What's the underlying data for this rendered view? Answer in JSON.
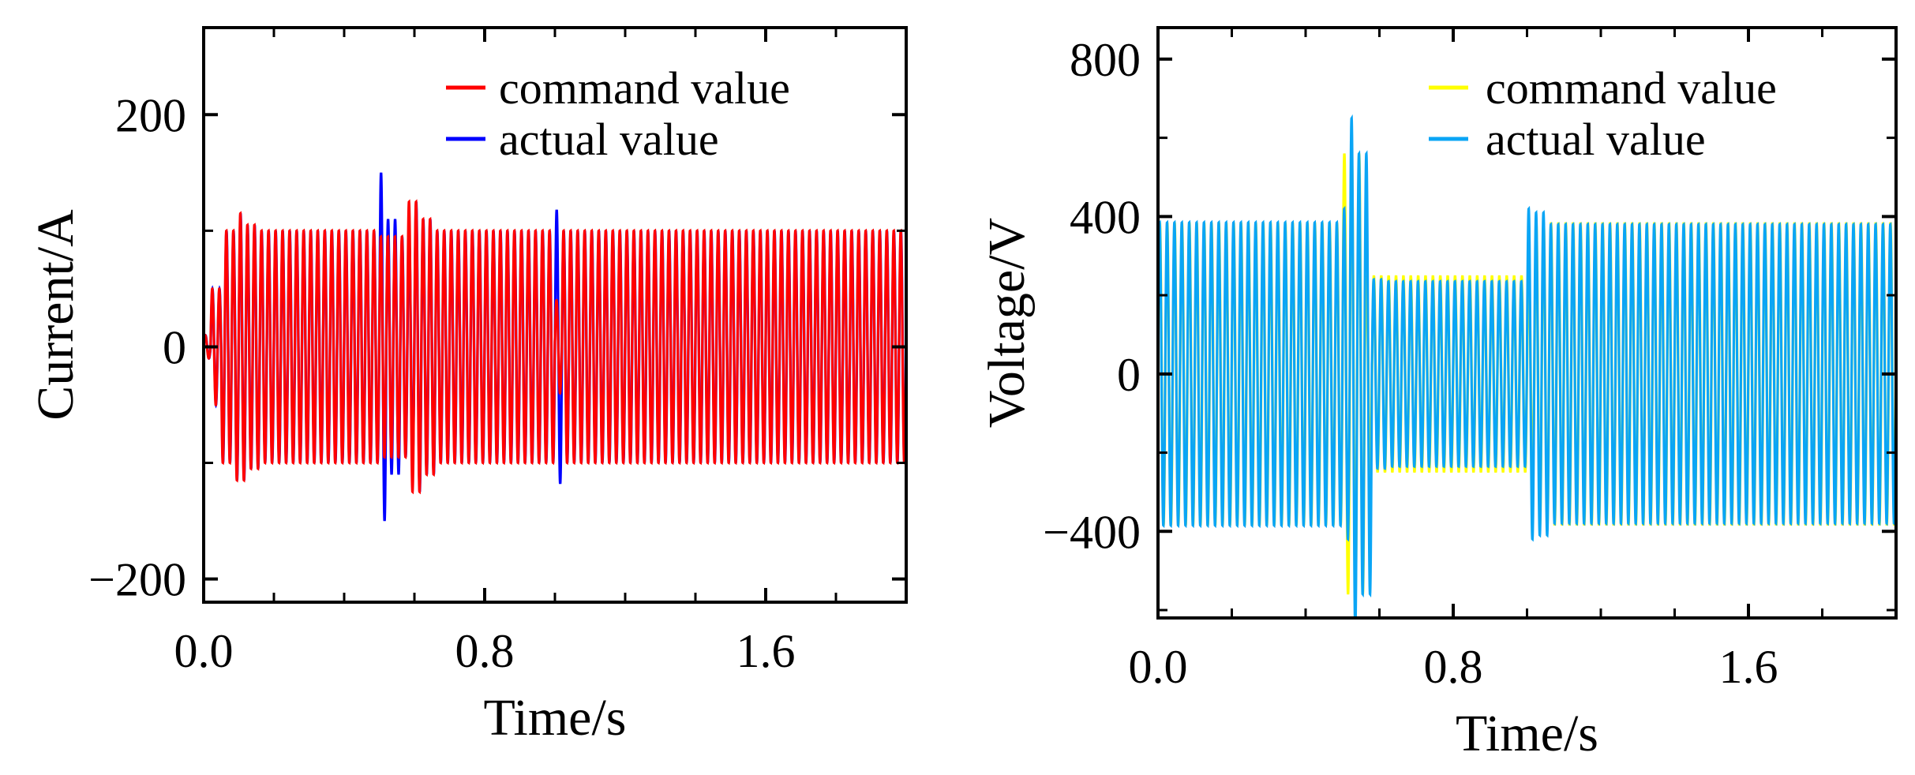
{
  "chart_data": [
    {
      "type": "line",
      "xlabel": "Time/s",
      "ylabel": "Current/A",
      "xlim": [
        0,
        2.0
      ],
      "ylim": [
        -220,
        275
      ],
      "xticks_major": [
        0.0,
        0.8,
        1.6
      ],
      "xtick_labels": [
        "0.0",
        "0.8",
        "1.6"
      ],
      "xticks_minor_step": 0.2,
      "yticks_major": [
        -200,
        0,
        200
      ],
      "ytick_labels": [
        "−200",
        "0",
        "200"
      ],
      "yticks_minor_step": 100,
      "legend_position": "top-right",
      "series": [
        {
          "name": "actual value",
          "color": "#0000ff",
          "waveform": {
            "freq_hz": 50,
            "segments": [
              {
                "t0": 0.0,
                "t1": 0.02,
                "amp": 10
              },
              {
                "t0": 0.02,
                "t1": 0.05,
                "amp": 50
              },
              {
                "t0": 0.05,
                "t1": 0.09,
                "amp": 100
              },
              {
                "t0": 0.09,
                "t1": 0.12,
                "amp": 115
              },
              {
                "t0": 0.12,
                "t1": 0.16,
                "amp": 105
              },
              {
                "t0": 0.16,
                "t1": 0.5,
                "amp": 100
              },
              {
                "t0": 0.5,
                "t1": 0.52,
                "amp": 150
              },
              {
                "t0": 0.52,
                "t1": 0.56,
                "amp": 110
              },
              {
                "t0": 0.56,
                "t1": 0.6,
                "amp": 95
              },
              {
                "t0": 0.6,
                "t1": 0.62,
                "amp": 125
              },
              {
                "t0": 0.62,
                "t1": 0.66,
                "amp": 110
              },
              {
                "t0": 0.66,
                "t1": 1.0,
                "amp": 100
              },
              {
                "t0": 1.0,
                "t1": 1.02,
                "amp": 118
              },
              {
                "t0": 1.02,
                "t1": 2.0,
                "amp": 100
              }
            ]
          }
        },
        {
          "name": "command value",
          "color": "#ff0000",
          "waveform": {
            "freq_hz": 50,
            "segments": [
              {
                "t0": 0.0,
                "t1": 0.02,
                "amp": 10
              },
              {
                "t0": 0.02,
                "t1": 0.05,
                "amp": 50
              },
              {
                "t0": 0.05,
                "t1": 0.09,
                "amp": 100
              },
              {
                "t0": 0.09,
                "t1": 0.12,
                "amp": 115
              },
              {
                "t0": 0.12,
                "t1": 0.16,
                "amp": 105
              },
              {
                "t0": 0.16,
                "t1": 0.5,
                "amp": 100
              },
              {
                "t0": 0.5,
                "t1": 0.58,
                "amp": 95
              },
              {
                "t0": 0.58,
                "t1": 0.62,
                "amp": 125
              },
              {
                "t0": 0.62,
                "t1": 0.66,
                "amp": 110
              },
              {
                "t0": 0.66,
                "t1": 1.0,
                "amp": 100
              },
              {
                "t0": 1.0,
                "t1": 1.02,
                "amp": 40
              },
              {
                "t0": 1.02,
                "t1": 2.0,
                "amp": 100
              }
            ]
          }
        }
      ],
      "legend_order": [
        "command value",
        "actual value"
      ]
    },
    {
      "type": "line",
      "xlabel": "Time/s",
      "ylabel": "Voltage/V",
      "xlim": [
        0,
        2.0
      ],
      "ylim": [
        -620,
        880
      ],
      "xticks_major": [
        0.0,
        0.8,
        1.6
      ],
      "xtick_labels": [
        "0.0",
        "0.8",
        "1.6"
      ],
      "xticks_minor_step": 0.2,
      "yticks_major": [
        -400,
        0,
        400,
        800
      ],
      "ytick_labels": [
        "−400",
        "0",
        "400",
        "800"
      ],
      "yticks_minor_step": 200,
      "legend_position": "top-right",
      "series": [
        {
          "name": "command value",
          "color": "#ffff00",
          "waveform": {
            "freq_hz": 50,
            "segments": [
              {
                "t0": 0.0,
                "t1": 0.5,
                "amp": 385
              },
              {
                "t0": 0.5,
                "t1": 0.56,
                "amp": 560
              },
              {
                "t0": 0.56,
                "t1": 0.62,
                "amp": 250
              },
              {
                "t0": 0.62,
                "t1": 1.02,
                "amp": 250
              },
              {
                "t0": 1.02,
                "t1": 2.0,
                "amp": 385
              }
            ]
          }
        },
        {
          "name": "actual value",
          "color": "#0aa5f5",
          "waveform": {
            "freq_hz": 50,
            "segments": [
              {
                "t0": 0.0,
                "t1": 0.5,
                "amp": 385
              },
              {
                "t0": 0.5,
                "t1": 0.52,
                "amp": 420
              },
              {
                "t0": 0.52,
                "t1": 0.54,
                "amp": 650
              },
              {
                "t0": 0.54,
                "t1": 0.58,
                "amp": 560
              },
              {
                "t0": 0.58,
                "t1": 0.62,
                "amp": 240
              },
              {
                "t0": 0.62,
                "t1": 1.0,
                "amp": 235
              },
              {
                "t0": 1.0,
                "t1": 1.02,
                "amp": 420
              },
              {
                "t0": 1.02,
                "t1": 1.06,
                "amp": 410
              },
              {
                "t0": 1.06,
                "t1": 2.0,
                "amp": 380
              }
            ]
          }
        }
      ],
      "legend_order": [
        "command value",
        "actual value"
      ]
    }
  ]
}
